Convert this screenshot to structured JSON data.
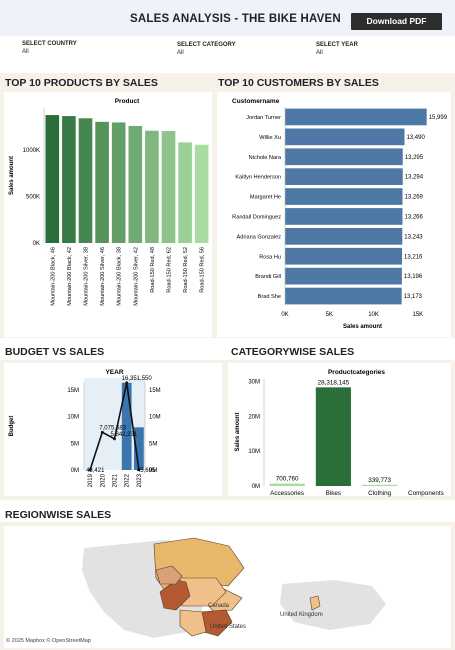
{
  "header": {
    "title": "SALES ANALYSIS - THE BIKE HAVEN",
    "download_label": "Download PDF"
  },
  "filters": [
    {
      "label": "SELECT COUNTRY",
      "value": "All"
    },
    {
      "label": "SELECT CATEGORY",
      "value": "All"
    },
    {
      "label": "SELECT YEAR",
      "value": "All"
    }
  ],
  "sections": {
    "products": "TOP 10 PRODUCTS BY SALES",
    "customers": "TOP 10 CUSTOMERS BY SALES",
    "budget": "BUDGET VS SALES",
    "category": "CATEGORYWISE SALES",
    "region": "REGIONWISE SALES"
  },
  "map": {
    "attribution": "© 2025 Mapbox © OpenStreetMap",
    "labels": [
      "Canada",
      "United States",
      "United Kingdom"
    ]
  },
  "colors": {
    "header_band": "#edf3f8",
    "dark_green": "#2a6e3a",
    "light_green": "#a9dca0",
    "bar_blue": "#4e79a7",
    "budget_blue": "#3a75ad",
    "map_dark": "#b35a33",
    "map_light": "#f0c08a"
  },
  "chart_data": [
    {
      "id": "products",
      "type": "bar",
      "title": "Product",
      "ylabel": "Sales amount",
      "categories": [
        "Mountain-200 Black, 46",
        "Mountain-200 Black, 42",
        "Mountain-200 Silver, 38",
        "Mountain-200 Silver, 46",
        "Mountain-200 Black, 38",
        "Mountain-200 Silver, 42",
        "Road-150 Red, 48",
        "Road-150 Red, 62",
        "Road-150 Red, 52",
        "Road-150 Red, 56"
      ],
      "values": [
        1373970,
        1363129,
        1339462,
        1301265,
        1294854,
        1257368,
        1205877,
        1202299,
        1080638,
        1055534
      ],
      "ylim": [
        0,
        1450000
      ],
      "yticks": [
        0,
        500000,
        1000000
      ],
      "ytick_labels": [
        "0K",
        "500K",
        "1000K"
      ]
    },
    {
      "id": "customers",
      "type": "bar",
      "title": "Customername",
      "xlabel": "Sales amount",
      "orientation": "horizontal",
      "categories": [
        "Jordan Turner",
        "Willie Xu",
        "Nichole Nara",
        "Kaitlyn Henderson",
        "Margaret He",
        "Randall Dominguez",
        "Adriana Gonzalez",
        "Rosa Hu",
        "Brandi Gill",
        "Brad She"
      ],
      "values": [
        15999,
        13490,
        13295,
        13294,
        13269,
        13266,
        13243,
        13216,
        13196,
        13173
      ],
      "value_labels": [
        "15,999",
        "13,490",
        "13,295",
        "13,294",
        "13,269",
        "13,266",
        "13,243",
        "13,216",
        "13,196",
        "13,173"
      ],
      "xlim": [
        0,
        17500
      ],
      "xticks": [
        0,
        5000,
        10000,
        15000
      ],
      "xtick_labels": [
        "0K",
        "5K",
        "10K",
        "15K"
      ]
    },
    {
      "id": "budget",
      "type": "bar",
      "title": "YEAR",
      "ylabel": "Budget",
      "categories": [
        "2019",
        "2020",
        "2021",
        "2022",
        "2023"
      ],
      "series": [
        {
          "name": "Budget",
          "type": "bar",
          "values": [
            0,
            0,
            0,
            16351000,
            8000000
          ]
        },
        {
          "name": "Sales",
          "type": "line",
          "values": [
            43421,
            7075583,
            5842231,
            16351550,
            45695
          ]
        }
      ],
      "point_labels": [
        "43,421",
        "7,075,583",
        "5,842,231",
        "16,351,550",
        "45,695"
      ],
      "ylim": [
        0,
        16500000
      ],
      "yticks": [
        0,
        5000000,
        10000000,
        15000000
      ],
      "ytick_labels": [
        "0M",
        "5M",
        "10M",
        "15M"
      ]
    },
    {
      "id": "category",
      "type": "bar",
      "title": "Productcategories",
      "ylabel": "Sales amount",
      "categories": [
        "Accessories",
        "Bikes",
        "Clothing",
        "Components"
      ],
      "values": [
        700760,
        28318145,
        339773,
        0
      ],
      "value_labels": [
        "700,760",
        "28,318,145",
        "339,773",
        ""
      ],
      "ylim": [
        0,
        31000000
      ],
      "yticks": [
        0,
        10000000,
        20000000,
        30000000
      ],
      "ytick_labels": [
        "0M",
        "10M",
        "20M",
        "30M"
      ]
    }
  ]
}
